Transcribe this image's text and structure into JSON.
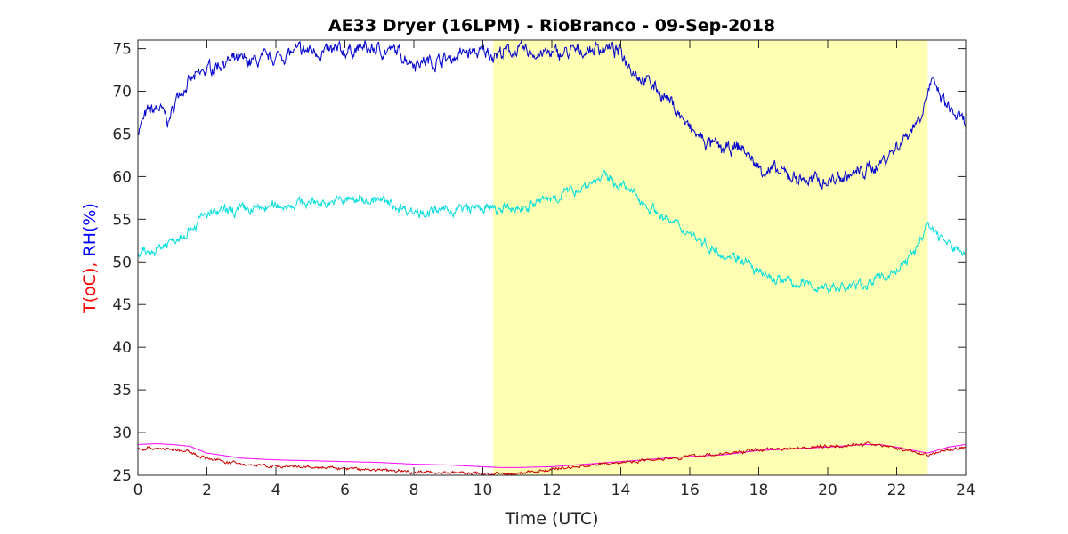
{
  "chart_data": {
    "type": "line",
    "title": "AE33 Dryer (16LPM)  - RioBranco - 09-Sep-2018",
    "xlabel": "Time (UTC)",
    "ylabel_parts": [
      {
        "text": "T(oC), ",
        "color": "#ff0000"
      },
      {
        "text": "RH(%)",
        "color": "#0000ff"
      }
    ],
    "xlim": [
      0,
      24
    ],
    "ylim": [
      25,
      76
    ],
    "xticks": [
      0,
      2,
      4,
      6,
      8,
      10,
      12,
      14,
      16,
      18,
      20,
      22,
      24
    ],
    "yticks": [
      25,
      30,
      35,
      40,
      45,
      50,
      55,
      60,
      65,
      70,
      75
    ],
    "grid": false,
    "shaded_region": {
      "x_start": 10.3,
      "x_end": 22.9,
      "color": "#ffffb3"
    },
    "series": [
      {
        "color": "#0000cc",
        "noise": 0.8,
        "x": [
          0,
          0.3,
          0.6,
          0.9,
          1.2,
          1.5,
          2,
          2.5,
          3,
          3.5,
          4,
          4.5,
          5,
          5.5,
          6,
          6.5,
          7,
          7.5,
          8,
          8.5,
          9,
          9.5,
          10,
          10.5,
          11,
          11.5,
          12,
          12.5,
          13,
          13.5,
          14,
          14.5,
          15,
          15.5,
          16,
          16.5,
          17,
          17.5,
          18,
          18.5,
          19,
          19.5,
          20,
          20.5,
          21,
          21.5,
          22,
          22.5,
          22.7,
          23,
          23.5,
          24
        ],
        "y": [
          65.5,
          67.5,
          68,
          66.5,
          70,
          71,
          72.5,
          73.5,
          73.5,
          73.5,
          74,
          74.5,
          74.8,
          74.5,
          74.7,
          75,
          74.8,
          74.6,
          73.5,
          73.5,
          73.8,
          74.5,
          74.5,
          74.5,
          74.7,
          74.5,
          74.3,
          74.5,
          74.8,
          75.2,
          74.5,
          72,
          70.5,
          68.5,
          65.5,
          64,
          63,
          63.5,
          61,
          60.5,
          60,
          59.5,
          59.5,
          60,
          60.5,
          61.5,
          63.5,
          66,
          67.5,
          71,
          68,
          66
        ]
      },
      {
        "color": "#00dddd",
        "noise": 0.6,
        "x": [
          0,
          0.5,
          1,
          1.5,
          2,
          2.5,
          3,
          3.5,
          4,
          4.5,
          5,
          5.5,
          6,
          6.5,
          7,
          7.5,
          8,
          8.5,
          9,
          9.5,
          10,
          10.5,
          11,
          11.5,
          12,
          12.5,
          13,
          13.5,
          14,
          14.5,
          15,
          15.5,
          16,
          16.5,
          17,
          17.5,
          18,
          18.5,
          19,
          19.5,
          20,
          20.5,
          21,
          21.5,
          22,
          22.5,
          22.9,
          23.5,
          24
        ],
        "y": [
          50.5,
          51.5,
          52.5,
          54,
          55.5,
          55.8,
          56,
          56.2,
          56.5,
          56.8,
          57,
          57,
          57.2,
          57.3,
          57.2,
          56.5,
          56,
          55.8,
          56,
          56.2,
          56.3,
          56,
          56.3,
          56.8,
          57.5,
          58.2,
          59,
          60,
          59,
          57.5,
          56,
          54.5,
          53.5,
          52,
          51,
          50.5,
          48.5,
          48,
          47.5,
          47.2,
          47,
          47,
          47.3,
          48,
          49,
          51,
          54.5,
          52,
          51
        ]
      },
      {
        "color": "#ff00ff",
        "noise": 0,
        "x": [
          0,
          0.5,
          1,
          1.5,
          2,
          2.5,
          3,
          4,
          5,
          6,
          7,
          8,
          9,
          10,
          10.5,
          11,
          12,
          13,
          14,
          15,
          16,
          17,
          18,
          19,
          20,
          21,
          21.5,
          22,
          22.5,
          22.9,
          23.5,
          24
        ],
        "y": [
          28.6,
          28.7,
          28.6,
          28.4,
          27.6,
          27.3,
          27.0,
          26.8,
          26.7,
          26.6,
          26.5,
          26.3,
          26.2,
          26.0,
          25.9,
          25.9,
          26.0,
          26.3,
          26.6,
          26.9,
          27.2,
          27.4,
          27.9,
          28.1,
          28.3,
          28.6,
          28.6,
          28.3,
          27.9,
          27.6,
          28.3,
          28.6
        ]
      },
      {
        "color": "#cc0000",
        "noise": 0.18,
        "x": [
          0,
          0.5,
          1,
          1.5,
          2,
          2.5,
          3,
          4,
          5,
          6,
          7,
          8,
          9,
          10,
          10.5,
          11,
          12,
          13,
          14,
          15,
          16,
          17,
          18,
          19,
          20,
          21,
          21.5,
          22,
          22.5,
          22.9,
          23.5,
          24
        ],
        "y": [
          28.1,
          28.2,
          28.0,
          27.7,
          27.0,
          26.6,
          26.3,
          26.0,
          25.9,
          25.8,
          25.6,
          25.4,
          25.3,
          25.2,
          25.1,
          25.2,
          25.7,
          26.1,
          26.5,
          26.9,
          27.2,
          27.5,
          28.0,
          28.2,
          28.4,
          28.6,
          28.6,
          28.2,
          27.7,
          27.4,
          28.0,
          28.3
        ]
      }
    ]
  }
}
